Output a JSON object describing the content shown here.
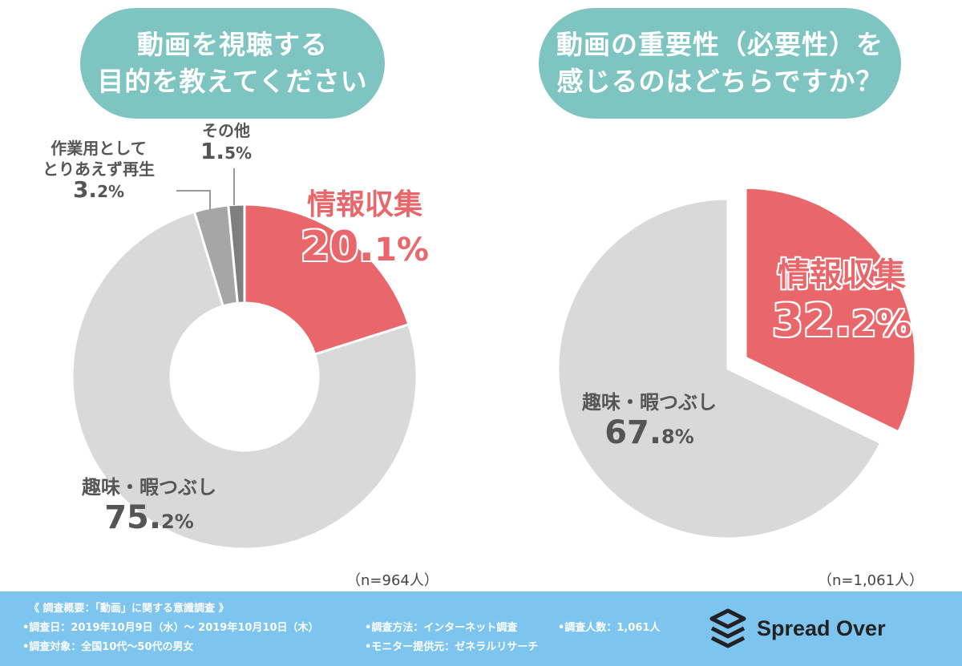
{
  "titles": {
    "left": [
      "動画を視聴する",
      "目的を教えてください"
    ],
    "right": [
      "動画の重要性（必要性）を",
      "感じるのはどちらですか？"
    ]
  },
  "chart_data": [
    {
      "type": "pie",
      "title": "動画を視聴する目的を教えてください",
      "slices": [
        {
          "label": "情報収集",
          "value": 20.1,
          "color": "#e9676a"
        },
        {
          "label": "趣味・暇つぶし",
          "value": 75.2,
          "color": "#d9d9d9"
        },
        {
          "label": "作業用としてとりあえず再生",
          "value": 3.2,
          "color": "#a6a6a6"
        },
        {
          "label": "その他",
          "value": 1.5,
          "color": "#7f7f7f"
        }
      ],
      "donut": true,
      "n": "（n=964人）"
    },
    {
      "type": "pie",
      "title": "動画の重要性（必要性）を感じるのはどちらですか？",
      "slices": [
        {
          "label": "情報収集",
          "value": 32.2,
          "color": "#e9676a"
        },
        {
          "label": "趣味・暇つぶし",
          "value": 67.8,
          "color": "#d9d9d9"
        }
      ],
      "donut": false,
      "n": "（n=1,061人）"
    }
  ],
  "labels": {
    "left": {
      "info_name": "情報収集",
      "info_int": "20.",
      "info_dec": "1%",
      "hobby_name": "趣味・暇つぶし",
      "hobby_int": "75.",
      "hobby_dec": "2%",
      "work_line1": "作業用として",
      "work_line2": "とりあえず再生",
      "work_int": "3.",
      "work_dec": "2%",
      "other_name": "その他",
      "other_int": "1.",
      "other_dec": "5%"
    },
    "right": {
      "info_name": "情報収集",
      "info_int": "32.",
      "info_dec": "2%",
      "hobby_name": "趣味・暇つぶし",
      "hobby_int": "67.",
      "hobby_dec": "8%"
    }
  },
  "footer": {
    "summary": "《 調査概要：「動画」に関する意識調査 》",
    "date": "•調査日：2019年10月9日（水）～ 2019年10月10日（木）",
    "target": "•調査対象：全国10代～50代の男女",
    "method": "•調査方法：インターネット調査",
    "count": "•調査人数：1,061人",
    "monitor": "•モニター提供元：ゼネラルリサーチ",
    "brand": "Spread Over"
  }
}
